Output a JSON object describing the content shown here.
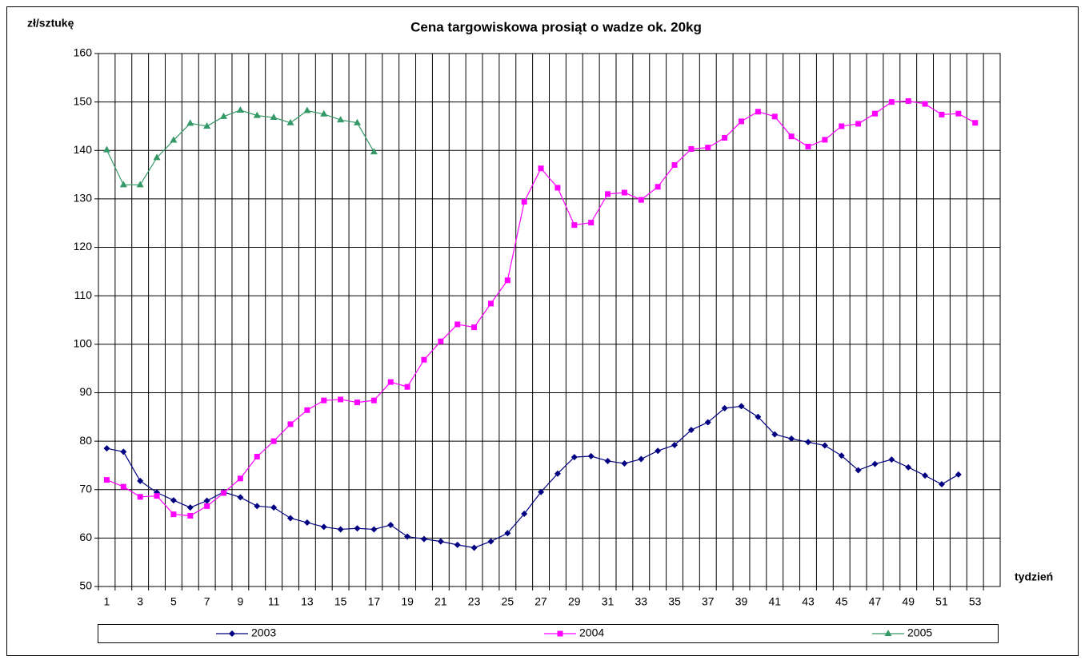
{
  "chart_data": {
    "type": "line",
    "title": "Cena targowiskowa prosiąt o wadze ok. 20kg",
    "y_label": "zł/sztukę",
    "x_label": "tydzień",
    "categories": [
      "1",
      null,
      "3",
      null,
      "5",
      null,
      "7",
      null,
      "9",
      null,
      "11",
      null,
      "13",
      null,
      "15",
      null,
      "17",
      null,
      "19",
      null,
      "21",
      null,
      "23",
      null,
      "25",
      null,
      "27",
      null,
      "29",
      null,
      "31",
      null,
      "33",
      null,
      "35",
      null,
      "37",
      null,
      "39",
      null,
      "41",
      null,
      "43",
      null,
      "45",
      null,
      "47",
      null,
      "49",
      null,
      "51",
      null,
      "53",
      null
    ],
    "ylim": [
      50,
      160
    ],
    "yticks": [
      50,
      60,
      70,
      80,
      90,
      100,
      110,
      120,
      130,
      140,
      150,
      160
    ],
    "grid": true,
    "legend": "bottom",
    "series": [
      {
        "name": "2003",
        "color": "#000080",
        "marker": "diamond",
        "values": [
          78.5,
          77.8,
          71.8,
          69.4,
          67.8,
          66.3,
          67.7,
          69.5,
          68.4,
          66.6,
          66.3,
          64.1,
          63.2,
          62.3,
          61.8,
          62.0,
          61.8,
          62.7,
          60.3,
          59.8,
          59.3,
          58.6,
          58.0,
          59.3,
          61.0,
          65.0,
          69.5,
          73.3,
          76.7,
          76.9,
          75.9,
          75.4,
          76.3,
          78.0,
          79.2,
          82.3,
          83.9,
          86.8,
          87.2,
          85.0,
          81.4,
          80.5,
          79.8,
          79.1,
          77.0,
          74.0,
          75.3,
          76.2,
          74.6,
          72.9,
          71.1,
          73.1,
          null,
          null
        ]
      },
      {
        "name": "2004",
        "color": "#ff00ff",
        "marker": "square",
        "values": [
          72.0,
          70.6,
          68.5,
          68.7,
          64.9,
          64.6,
          66.6,
          69.3,
          72.3,
          76.8,
          80.0,
          83.5,
          86.4,
          88.4,
          88.6,
          88.0,
          88.4,
          92.2,
          91.2,
          96.8,
          100.6,
          104.1,
          103.5,
          108.4,
          113.2,
          129.4,
          136.3,
          132.3,
          124.6,
          125.1,
          131.0,
          131.3,
          129.8,
          132.5,
          137.0,
          140.3,
          140.6,
          142.6,
          146.0,
          148.0,
          147.0,
          142.9,
          140.8,
          142.2,
          145.0,
          145.5,
          147.6,
          150.0,
          150.2,
          149.6,
          147.4,
          147.6,
          145.7,
          null
        ]
      },
      {
        "name": "2005",
        "color": "#339966",
        "marker": "triangle",
        "values": [
          140.1,
          132.9,
          132.9,
          138.5,
          142.1,
          145.6,
          145.0,
          147.0,
          148.3,
          147.2,
          146.8,
          145.7,
          148.2,
          147.5,
          146.3,
          145.7,
          139.7,
          null,
          null,
          null,
          null,
          null,
          null,
          null,
          null,
          null,
          null,
          null,
          null,
          null,
          null,
          null,
          null,
          null,
          null,
          null,
          null,
          null,
          null,
          null,
          null,
          null,
          null,
          null,
          null,
          null,
          null,
          null,
          null,
          null,
          null,
          null,
          null,
          null
        ]
      }
    ]
  }
}
